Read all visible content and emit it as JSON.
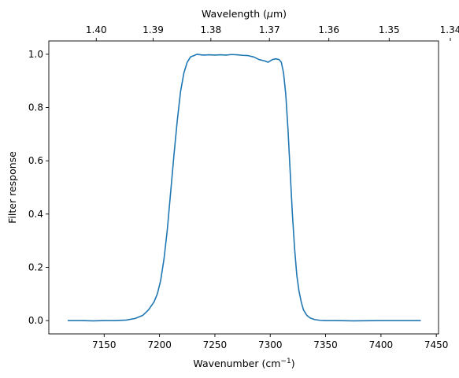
{
  "chart_data": {
    "type": "line",
    "xlabel": "Wavenumber (cm",
    "xlabel_sup": "−1",
    "xlabel_suffix": ")",
    "ylabel": "Filter response",
    "top_xlabel": "Wavelength (",
    "top_xlabel_mu": "μ",
    "top_xlabel_suffix": "m)",
    "xlim": [
      7100,
      7452
    ],
    "ylim": [
      -0.05,
      1.05
    ],
    "xticks": [
      7150,
      7200,
      7250,
      7300,
      7350,
      7400,
      7450
    ],
    "yticks": [
      0.0,
      0.2,
      0.4,
      0.6,
      0.8,
      1.0
    ],
    "ytick_labels": [
      "0.0",
      "0.2",
      "0.4",
      "0.6",
      "0.8",
      "1.0"
    ],
    "top_xticks": [
      1.4,
      1.39,
      1.38,
      1.37,
      1.36,
      1.35,
      1.34
    ],
    "top_xtick_labels": [
      "1.40",
      "1.39",
      "1.38",
      "1.37",
      "1.36",
      "1.35",
      "1.34"
    ],
    "grid": false,
    "series": [
      {
        "color": "#1f77b4",
        "x": [
          7117,
          7130,
          7140,
          7150,
          7160,
          7170,
          7178,
          7185,
          7190,
          7195,
          7198,
          7201,
          7204,
          7207,
          7210,
          7213,
          7216,
          7219,
          7222,
          7225,
          7228,
          7231,
          7234,
          7237,
          7240,
          7245,
          7250,
          7255,
          7260,
          7265,
          7270,
          7275,
          7280,
          7285,
          7290,
          7295,
          7298,
          7300,
          7302,
          7305,
          7308,
          7310,
          7312,
          7314,
          7316,
          7318,
          7320,
          7322,
          7324,
          7326,
          7328,
          7330,
          7333,
          7336,
          7340,
          7345,
          7350,
          7360,
          7375,
          7400,
          7420,
          7436
        ],
        "y": [
          0.0,
          0.0,
          -0.001,
          0.0,
          0.0,
          0.002,
          0.008,
          0.02,
          0.04,
          0.07,
          0.1,
          0.15,
          0.23,
          0.34,
          0.48,
          0.62,
          0.75,
          0.86,
          0.93,
          0.97,
          0.99,
          0.995,
          1.0,
          0.998,
          0.997,
          0.998,
          0.997,
          0.998,
          0.997,
          0.999,
          0.998,
          0.996,
          0.995,
          0.99,
          0.98,
          0.975,
          0.97,
          0.975,
          0.98,
          0.983,
          0.98,
          0.97,
          0.93,
          0.85,
          0.72,
          0.56,
          0.4,
          0.27,
          0.17,
          0.11,
          0.07,
          0.04,
          0.02,
          0.01,
          0.004,
          0.001,
          0.0,
          0.0,
          -0.001,
          0.0,
          0.0,
          0.0
        ]
      }
    ]
  }
}
